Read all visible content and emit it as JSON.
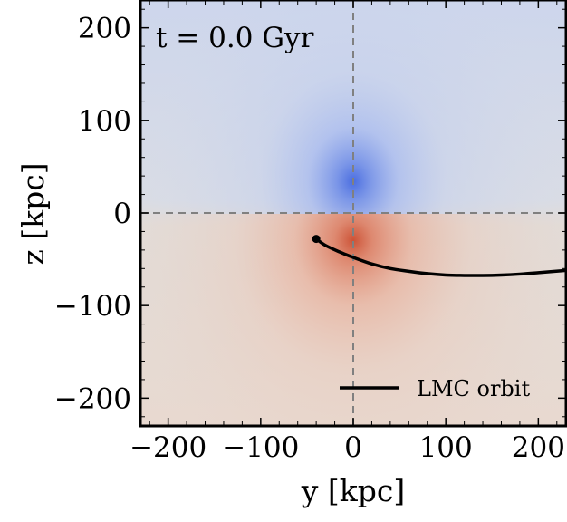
{
  "chart_data": {
    "type": "heatmap",
    "xlabel": "y [kpc]",
    "ylabel": "z [kpc]",
    "xlim": [
      -230,
      230
    ],
    "ylim": [
      -230,
      230
    ],
    "x_ticks": [
      -200,
      -100,
      0,
      100,
      200
    ],
    "y_ticks": [
      -200,
      -100,
      0,
      100,
      200
    ],
    "x_tick_labels": [
      "−200",
      "−100",
      "0",
      "100",
      "200"
    ],
    "y_tick_labels": [
      "−200",
      "−100",
      "0",
      "100",
      "200"
    ],
    "annotation": "t = 0.0 Gyr",
    "colormap": "coolwarm",
    "colors": {
      "negative": "#4a6de0",
      "positive": "#cc5236",
      "neutral": "#dddddd"
    },
    "field_features": [
      {
        "sign": "negative",
        "peak_y": 0,
        "peak_z": 35
      },
      {
        "sign": "positive",
        "peak_y": 0,
        "peak_z": -35
      }
    ],
    "reference_lines": [
      {
        "orientation": "vertical",
        "value": 0,
        "style": "dashed"
      },
      {
        "orientation": "horizontal",
        "value": 0,
        "style": "dashed"
      }
    ],
    "series": [
      {
        "name": "LMC orbit",
        "color": "#000000",
        "x": [
          -40,
          -30,
          -15,
          0,
          20,
          40,
          60,
          80,
          100,
          120,
          140,
          160,
          180,
          200,
          230
        ],
        "y": [
          -28,
          -35,
          -42,
          -48,
          -55,
          -60,
          -63,
          -65.5,
          -67,
          -67.5,
          -67.5,
          -67,
          -66,
          -64.5,
          -62
        ],
        "marker_at_start": true
      }
    ],
    "legend_position": "lower right",
    "grid": false
  }
}
